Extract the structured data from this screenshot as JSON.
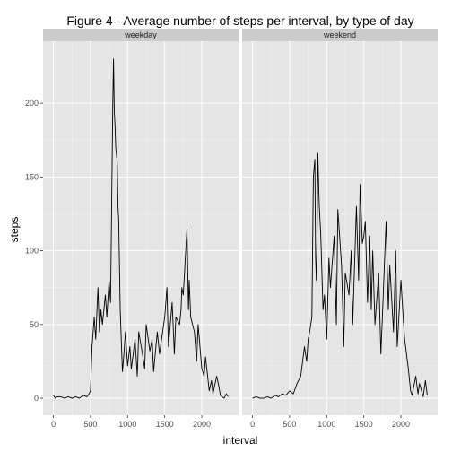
{
  "chart_data": {
    "type": "line",
    "title": "Figure 4 - Average number of steps per interval, by type of day",
    "xlabel": "interval",
    "ylabel": "steps",
    "xlim": [
      -140,
      2495
    ],
    "ylim": [
      -11.5,
      242
    ],
    "x_ticks": [
      0,
      500,
      1000,
      1500,
      2000
    ],
    "x_tick_labels": [
      "0",
      "500",
      "1000",
      "1500",
      "2000"
    ],
    "y_ticks": [
      0,
      50,
      100,
      150,
      200
    ],
    "y_tick_labels": [
      "0",
      "50",
      "100",
      "150",
      "200"
    ],
    "grid": true,
    "line_color": "#000000",
    "panel_background": "#e5e5e5",
    "strip_background": "#cccccc",
    "panels": [
      {
        "name": "weekday",
        "x": [
          0,
          25,
          50,
          100,
          150,
          200,
          250,
          300,
          350,
          400,
          450,
          480,
          500,
          520,
          550,
          570,
          600,
          620,
          640,
          660,
          700,
          720,
          750,
          770,
          800,
          810,
          820,
          830,
          840,
          850,
          860,
          870,
          880,
          900,
          930,
          950,
          970,
          1000,
          1030,
          1050,
          1100,
          1130,
          1150,
          1200,
          1230,
          1250,
          1300,
          1330,
          1350,
          1400,
          1430,
          1500,
          1530,
          1550,
          1600,
          1630,
          1650,
          1700,
          1720,
          1730,
          1750,
          1800,
          1820,
          1830,
          1850,
          1900,
          1930,
          1950,
          2000,
          2030,
          2050,
          2100,
          2130,
          2150,
          2200,
          2230,
          2250,
          2300,
          2330,
          2355
        ],
        "y": [
          2,
          0,
          1,
          1,
          0,
          1,
          0,
          1,
          0,
          2,
          1,
          3,
          5,
          35,
          55,
          40,
          75,
          45,
          60,
          50,
          70,
          55,
          80,
          65,
          200,
          230,
          195,
          185,
          170,
          165,
          160,
          130,
          120,
          60,
          18,
          30,
          45,
          22,
          35,
          20,
          40,
          15,
          45,
          30,
          20,
          50,
          32,
          40,
          18,
          45,
          30,
          55,
          75,
          35,
          65,
          30,
          55,
          50,
          60,
          75,
          70,
          115,
          60,
          80,
          55,
          45,
          25,
          50,
          20,
          15,
          28,
          5,
          12,
          3,
          15,
          8,
          2,
          0,
          3,
          1
        ]
      },
      {
        "name": "weekend",
        "x": [
          0,
          50,
          100,
          150,
          200,
          250,
          300,
          350,
          400,
          450,
          500,
          550,
          600,
          650,
          700,
          730,
          750,
          770,
          800,
          820,
          840,
          850,
          860,
          870,
          880,
          900,
          920,
          950,
          970,
          1000,
          1030,
          1050,
          1100,
          1130,
          1150,
          1200,
          1230,
          1250,
          1300,
          1330,
          1350,
          1400,
          1430,
          1450,
          1480,
          1500,
          1520,
          1550,
          1580,
          1600,
          1620,
          1650,
          1700,
          1730,
          1750,
          1800,
          1830,
          1850,
          1900,
          1930,
          1950,
          2000,
          2030,
          2050,
          2100,
          2130,
          2150,
          2200,
          2230,
          2250,
          2300,
          2330,
          2355
        ],
        "y": [
          0,
          1,
          0,
          0,
          1,
          0,
          2,
          1,
          3,
          2,
          5,
          3,
          10,
          15,
          35,
          25,
          40,
          45,
          55,
          150,
          162,
          95,
          80,
          110,
          166,
          130,
          110,
          60,
          70,
          40,
          95,
          75,
          110,
          50,
          128,
          90,
          35,
          85,
          70,
          100,
          50,
          130,
          80,
          145,
          105,
          110,
          120,
          65,
          110,
          60,
          100,
          50,
          85,
          30,
          55,
          120,
          60,
          90,
          45,
          100,
          35,
          80,
          55,
          40,
          20,
          5,
          2,
          15,
          3,
          10,
          1,
          12,
          2
        ]
      }
    ]
  }
}
